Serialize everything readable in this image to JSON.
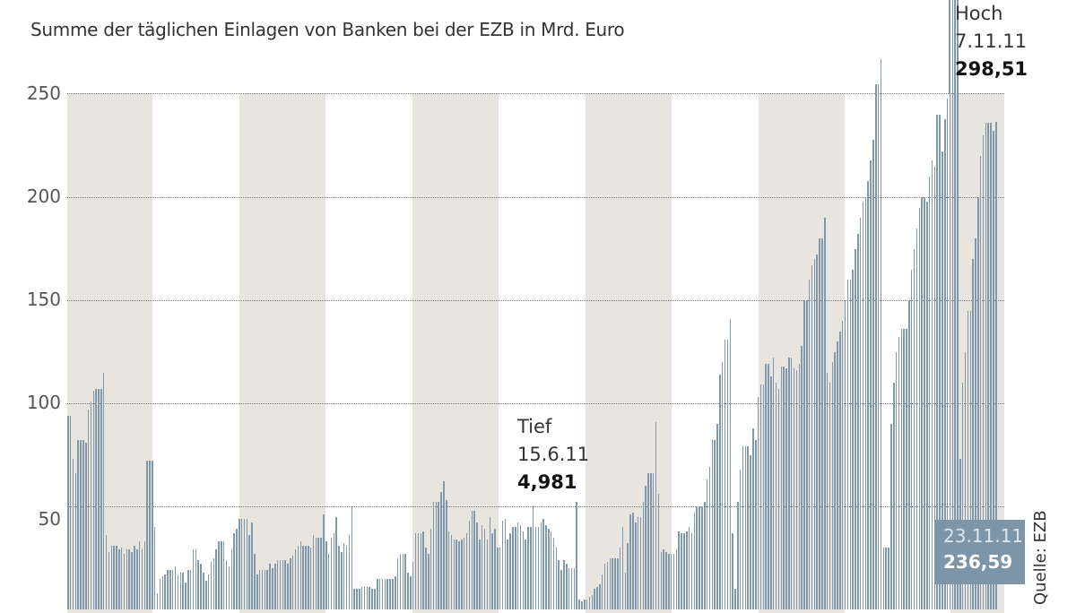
{
  "subtitle": "Summe der täglichen Einlagen von Banken bei der EZB in Mrd. Euro",
  "annotations": {
    "high": {
      "label": "Hoch",
      "date": "7.11.11",
      "value": "298,51"
    },
    "low": {
      "label": "Tief",
      "date": "15.6.11",
      "value": "4,981"
    },
    "last": {
      "date": "23.11.11",
      "value": "236,59"
    }
  },
  "source": "Quelle: EZB",
  "colors": {
    "bar": "#7f98ab",
    "band": "#e8e5de",
    "last_box": "#7c95a8"
  },
  "chart_data": {
    "type": "bar",
    "title": "Summe der täglichen Einlagen von Banken bei der EZB in Mrd. Euro",
    "xlabel": "",
    "ylabel": "Mrd. Euro",
    "ylim": [
      0,
      260
    ],
    "yticks": [
      50,
      100,
      150,
      200,
      250
    ],
    "grid": true,
    "annotations": [
      {
        "text": "Hoch 7.11.11 298,51",
        "value": 298.51
      },
      {
        "text": "Tief 15.6.11 4,981",
        "value": 4.981
      },
      {
        "text": "23.11.11 236,59",
        "value": 236.59
      }
    ],
    "values": [
      94,
      94,
      73,
      66,
      82,
      82,
      82,
      81,
      97,
      101,
      106,
      107,
      107,
      107,
      115,
      36,
      28,
      31,
      31,
      31,
      29,
      30,
      27,
      29,
      29,
      28,
      31,
      29,
      33,
      29,
      33,
      72,
      72,
      72,
      40,
      8,
      15,
      16,
      17,
      19,
      19,
      19,
      21,
      17,
      18,
      18,
      13,
      19,
      19,
      29,
      29,
      24,
      22,
      18,
      14,
      17,
      23,
      25,
      29,
      33,
      33,
      33,
      24,
      21,
      29,
      37,
      39,
      44,
      44,
      44,
      44,
      36,
      42,
      27,
      17,
      19,
      19,
      19,
      19,
      22,
      20,
      22,
      24,
      24,
      24,
      24,
      22,
      25,
      26,
      29,
      31,
      33,
      31,
      31,
      31,
      30,
      36,
      35,
      35,
      35,
      46,
      33,
      27,
      35,
      37,
      45,
      31,
      28,
      32,
      31,
      36,
      50,
      10,
      10,
      10,
      11,
      11,
      11,
      11,
      10,
      10,
      15,
      15,
      15,
      15,
      15,
      15,
      15,
      16,
      25,
      27,
      27,
      27,
      18,
      16,
      23,
      37,
      37,
      37,
      38,
      30,
      27,
      39,
      52,
      52,
      52,
      57,
      62,
      53,
      38,
      36,
      34,
      34,
      33,
      34,
      35,
      37,
      43,
      48,
      48,
      42,
      34,
      41,
      39,
      34,
      45,
      37,
      39,
      30,
      30,
      43,
      44,
      34,
      37,
      40,
      40,
      42,
      41,
      38,
      34,
      40,
      40,
      50,
      40,
      40,
      42,
      44,
      41,
      39,
      38,
      35,
      30,
      24,
      19,
      24,
      22,
      20,
      20,
      20,
      52,
      5,
      4,
      5,
      5,
      6,
      7,
      10,
      11,
      12,
      17,
      22,
      23,
      25,
      25,
      25,
      25,
      30,
      40,
      18,
      32,
      46,
      47,
      42,
      45,
      45,
      52,
      60,
      66,
      66,
      66,
      91,
      56,
      28,
      29,
      28,
      27,
      27,
      27,
      29,
      38,
      37,
      37,
      38,
      40,
      37,
      47,
      50,
      50,
      50,
      52,
      63,
      69,
      82,
      82,
      90,
      114,
      120,
      131,
      131,
      141,
      37,
      10,
      52,
      68,
      79,
      79,
      79,
      75,
      88,
      82,
      103,
      109,
      109,
      119,
      119,
      113,
      122,
      110,
      107,
      118,
      118,
      117,
      122,
      122,
      117,
      116,
      119,
      128,
      150,
      150,
      160,
      167,
      170,
      172,
      180,
      180,
      190,
      115,
      110,
      120,
      125,
      130,
      135,
      140,
      150,
      160,
      160,
      165,
      175,
      182,
      190,
      198,
      200,
      208,
      218,
      228,
      255,
      255,
      267,
      30,
      30,
      30,
      90,
      110,
      125,
      132,
      136,
      136,
      136,
      150,
      165,
      175,
      185,
      195,
      200,
      200,
      198,
      210,
      218,
      215,
      240,
      240,
      222,
      238,
      248,
      252,
      298.51,
      298,
      298,
      73,
      110,
      125,
      145,
      145,
      170,
      180,
      200,
      220,
      230,
      236,
      236,
      236,
      232,
      236.59
    ]
  }
}
